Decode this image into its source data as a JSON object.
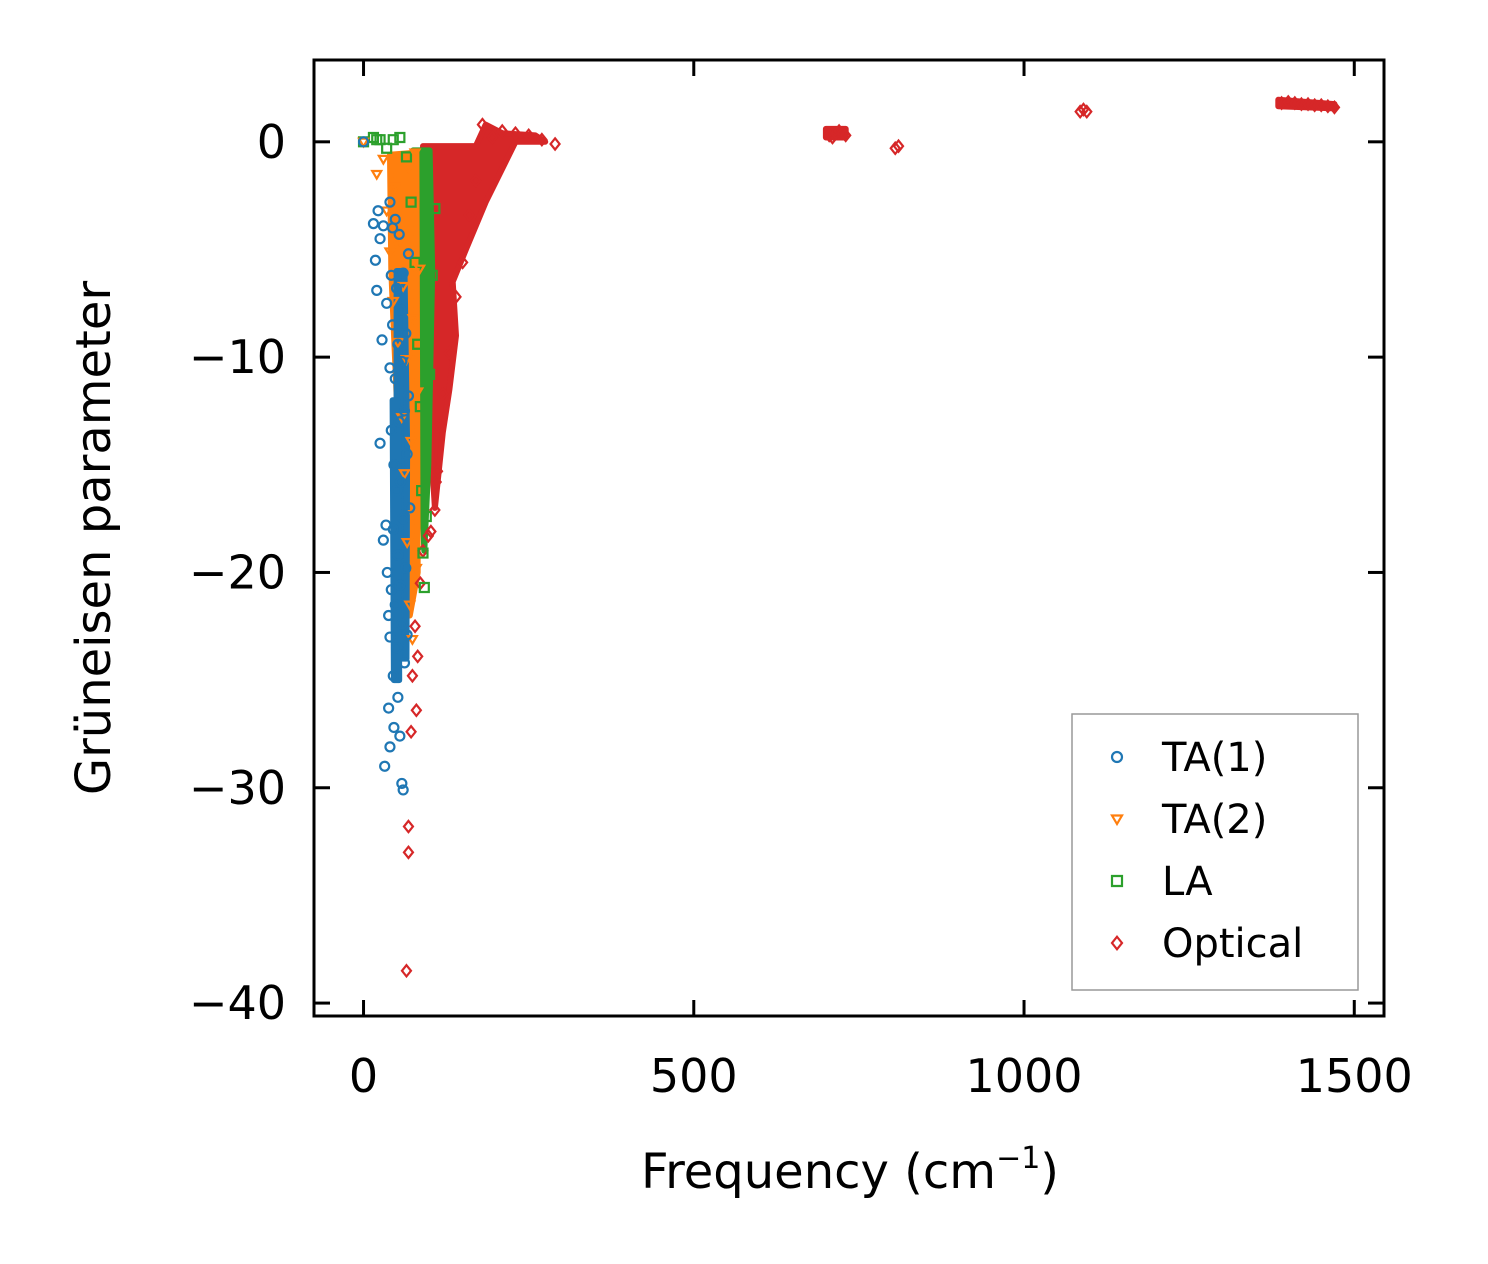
{
  "chart_data": {
    "type": "scatter",
    "title": "",
    "xlabel": "Frequency (cm",
    "xlabel_sup": "−1",
    "xlabel_close": ")",
    "ylabel": "Grüneisen parameter",
    "xlim": [
      -75,
      1545
    ],
    "ylim": [
      -40.6,
      3.8
    ],
    "xticks": [
      0,
      500,
      1000,
      1500
    ],
    "xtick_labels": [
      "0",
      "500",
      "1000",
      "1500"
    ],
    "yticks": [
      0,
      -10,
      -20,
      -30,
      -40
    ],
    "ytick_labels": [
      "0",
      "−10",
      "−20",
      "−30",
      "−40"
    ],
    "grid": false,
    "legend_position": "lower-right",
    "series": [
      {
        "name": "TA(1)",
        "marker": "circle",
        "color": "#1f77b4",
        "points": [
          [
            0,
            0
          ],
          [
            15,
            -3.8
          ],
          [
            18,
            -5.5
          ],
          [
            20,
            -6.9
          ],
          [
            22,
            -3.2
          ],
          [
            25,
            -4.5
          ],
          [
            25,
            -14
          ],
          [
            28,
            -9.2
          ],
          [
            30,
            -3.9
          ],
          [
            30,
            -18.5
          ],
          [
            32,
            -29
          ],
          [
            34,
            -17.8
          ],
          [
            35,
            -7.5
          ],
          [
            36,
            -20
          ],
          [
            38,
            -22
          ],
          [
            38,
            -26.3
          ],
          [
            40,
            -2.8
          ],
          [
            40,
            -10.5
          ],
          [
            40,
            -23
          ],
          [
            40,
            -28.1
          ],
          [
            42,
            -6.2
          ],
          [
            42,
            -13.4
          ],
          [
            42,
            -20.8
          ],
          [
            44,
            -4
          ],
          [
            44,
            -8.5
          ],
          [
            45,
            -18
          ],
          [
            45,
            -24.8
          ],
          [
            46,
            -15
          ],
          [
            46,
            -27.2
          ],
          [
            48,
            -3.6
          ],
          [
            48,
            -11
          ],
          [
            48,
            -21.5
          ],
          [
            50,
            -6.8
          ],
          [
            50,
            -16.2
          ],
          [
            50,
            -23.5
          ],
          [
            52,
            -9.4
          ],
          [
            52,
            -19.2
          ],
          [
            52,
            -25.8
          ],
          [
            54,
            -4.3
          ],
          [
            54,
            -13
          ],
          [
            55,
            -20.6
          ],
          [
            55,
            -27.6
          ],
          [
            56,
            -7.8
          ],
          [
            56,
            -15.8
          ],
          [
            58,
            -10.2
          ],
          [
            58,
            -22.4
          ],
          [
            58,
            -29.8
          ],
          [
            60,
            -30.1
          ],
          [
            60,
            -6.1
          ],
          [
            60,
            -17.5
          ],
          [
            62,
            -12.5
          ],
          [
            62,
            -24.2
          ],
          [
            64,
            -8.9
          ],
          [
            64,
            -19.8
          ],
          [
            66,
            -14.5
          ],
          [
            66,
            -22.9
          ],
          [
            68,
            -5.2
          ],
          [
            68,
            -11.8
          ],
          [
            70,
            -17
          ]
        ],
        "dense_bands": [
          [
            [
              50,
              -6
            ],
            [
              62,
              -6
            ],
            [
              66,
              -14
            ],
            [
              65,
              -24
            ],
            [
              52,
              -24
            ],
            [
              50,
              -14
            ]
          ],
          [
            [
              44,
              -12
            ],
            [
              52,
              -12
            ],
            [
              54,
              -25
            ],
            [
              46,
              -25
            ]
          ]
        ]
      },
      {
        "name": "TA(2)",
        "marker": "triangle-down",
        "color": "#ff7f0e",
        "points": [
          [
            0,
            0
          ],
          [
            20,
            -1.5
          ],
          [
            30,
            -0.8
          ],
          [
            35,
            -3.2
          ],
          [
            40,
            -5.1
          ],
          [
            45,
            -7.4
          ],
          [
            48,
            -2.1
          ],
          [
            52,
            -9.3
          ],
          [
            55,
            -4.6
          ],
          [
            58,
            -12.8
          ],
          [
            60,
            -6.7
          ],
          [
            62,
            -15.4
          ],
          [
            65,
            -10.1
          ],
          [
            66,
            -18.6
          ],
          [
            68,
            -1.2
          ],
          [
            70,
            -21.5
          ],
          [
            72,
            -13.9
          ],
          [
            74,
            -23.1
          ],
          [
            75,
            -8.2
          ],
          [
            76,
            -17.3
          ],
          [
            78,
            -0.5
          ],
          [
            80,
            -19.8
          ],
          [
            82,
            -11.6
          ],
          [
            85,
            -5.9
          ]
        ],
        "dense_bands": [
          [
            [
              40,
              -0.6
            ],
            [
              80,
              -0.5
            ],
            [
              82,
              -20
            ],
            [
              70,
              -22
            ],
            [
              56,
              -16
            ],
            [
              42,
              -6
            ]
          ]
        ]
      },
      {
        "name": "LA",
        "marker": "square",
        "color": "#2ca02c",
        "points": [
          [
            0,
            0
          ],
          [
            15,
            0.2
          ],
          [
            20,
            0.1
          ],
          [
            25,
            0.1
          ],
          [
            35,
            -0.3
          ],
          [
            45,
            0.1
          ],
          [
            55,
            0.2
          ],
          [
            65,
            -0.7
          ],
          [
            72,
            -2.8
          ],
          [
            78,
            -5.6
          ],
          [
            82,
            -9.4
          ],
          [
            86,
            -12.3
          ],
          [
            88,
            -16.2
          ],
          [
            90,
            -19.1
          ],
          [
            92,
            -20.7
          ],
          [
            95,
            -17.4
          ],
          [
            100,
            -10.8
          ],
          [
            104,
            -6.2
          ],
          [
            108,
            -3.1
          ]
        ],
        "dense_bands": [
          [
            [
              75,
              -0.4
            ],
            [
              100,
              -0.4
            ],
            [
              104,
              -6
            ],
            [
              98,
              -15
            ],
            [
              92,
              -19
            ],
            [
              84,
              -12
            ],
            [
              78,
              -5
            ]
          ]
        ]
      },
      {
        "name": "Optical",
        "marker": "diamond",
        "color": "#d62728",
        "points": [
          [
            65,
            -38.5
          ],
          [
            68,
            -31.8
          ],
          [
            68,
            -33
          ],
          [
            72,
            -27.4
          ],
          [
            74,
            -24.8
          ],
          [
            78,
            -22.5
          ],
          [
            80,
            -26.4
          ],
          [
            82,
            -23.9
          ],
          [
            86,
            -20.5
          ],
          [
            90,
            -19
          ],
          [
            98,
            -18.3
          ],
          [
            102,
            -18.1
          ],
          [
            108,
            -17.1
          ],
          [
            110,
            -15.8
          ],
          [
            112,
            -15.3
          ],
          [
            115,
            -13.2
          ],
          [
            120,
            -11.7
          ],
          [
            130,
            -9.8
          ],
          [
            140,
            -7.2
          ],
          [
            150,
            -5.6
          ],
          [
            160,
            -3.4
          ],
          [
            170,
            -1.8
          ],
          [
            180,
            0.8
          ],
          [
            195,
            0.2
          ],
          [
            210,
            0.5
          ],
          [
            230,
            0.4
          ],
          [
            250,
            0.3
          ],
          [
            270,
            0.1
          ],
          [
            290,
            -0.1
          ],
          [
            705,
            0.3
          ],
          [
            710,
            0.2
          ],
          [
            715,
            0.4
          ],
          [
            720,
            0.5
          ],
          [
            725,
            0.4
          ],
          [
            730,
            0.3
          ],
          [
            805,
            -0.3
          ],
          [
            810,
            -0.2
          ],
          [
            1085,
            1.4
          ],
          [
            1090,
            1.5
          ],
          [
            1095,
            1.4
          ],
          [
            1390,
            1.8
          ],
          [
            1400,
            1.85
          ],
          [
            1410,
            1.8
          ],
          [
            1420,
            1.75
          ],
          [
            1430,
            1.75
          ],
          [
            1440,
            1.7
          ],
          [
            1450,
            1.7
          ],
          [
            1460,
            1.65
          ],
          [
            1470,
            1.6
          ]
        ],
        "dense_bands": [
          [
            [
              90,
              -0.2
            ],
            [
              170,
              -0.2
            ],
            [
              185,
              0.8
            ],
            [
              210,
              0.4
            ],
            [
              260,
              0.3
            ],
            [
              275,
              0
            ],
            [
              230,
              0
            ],
            [
              185,
              -2.8
            ],
            [
              155,
              -5
            ],
            [
              135,
              -6.5
            ],
            [
              140,
              -9
            ],
            [
              130,
              -11.5
            ],
            [
              120,
              -13.5
            ],
            [
              108,
              -17
            ],
            [
              100,
              -13
            ],
            [
              96,
              -8
            ],
            [
              94,
              -2
            ]
          ],
          [
            [
              700,
              0.2
            ],
            [
              730,
              0.2
            ],
            [
              730,
              0.6
            ],
            [
              700,
              0.6
            ]
          ],
          [
            [
              1385,
              1.65
            ],
            [
              1470,
              1.55
            ],
            [
              1470,
              1.75
            ],
            [
              1385,
              1.95
            ]
          ]
        ]
      }
    ]
  }
}
